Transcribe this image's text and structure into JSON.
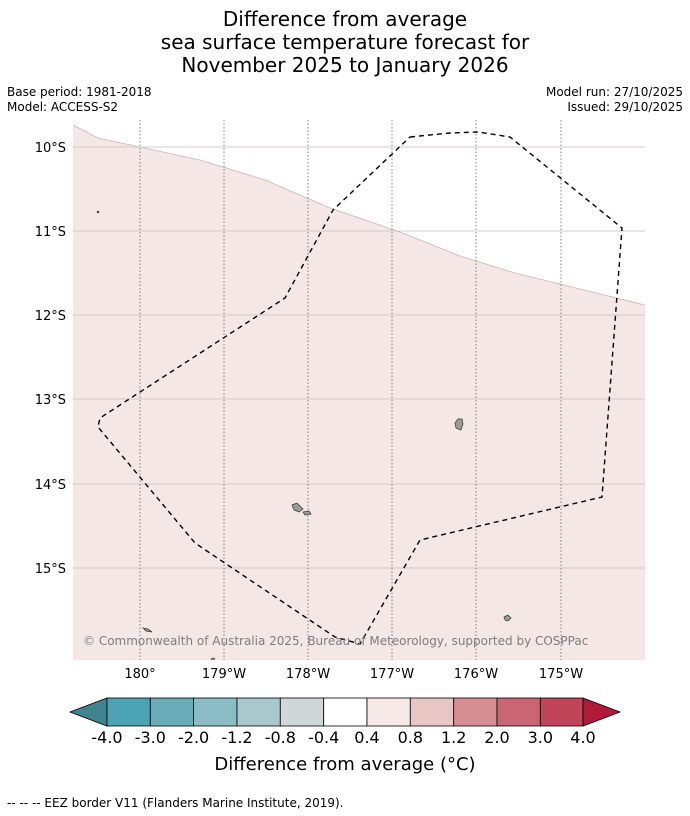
{
  "title": {
    "line1": "Difference from average",
    "line2": "sea surface temperature forecast for",
    "line3": "November 2025 to January 2026"
  },
  "meta": {
    "base_period": "Base period: 1981-2018",
    "model": "Model: ACCESS-S2",
    "model_run": "Model run: 27/10/2025",
    "issued": "Issued: 29/10/2025"
  },
  "map": {
    "lat_labels": [
      "10°S",
      "11°S",
      "12°S",
      "13°S",
      "14°S",
      "15°S"
    ],
    "lon_labels": [
      "180°",
      "179°W",
      "178°W",
      "177°W",
      "176°W",
      "175°W"
    ],
    "copyright": "© Commonwealth of Australia 2025, Bureau of Meteorology, supported by COSPPac",
    "colors": {
      "anomaly_fill": "#f4e7e6",
      "land": "#9a9a9a",
      "grid": "#c8bdbd",
      "eez_border": "#000000"
    }
  },
  "colorbar": {
    "title": "Difference from average (°C)",
    "labels": [
      "-4.0",
      "-3.0",
      "-2.0",
      "-1.2",
      "-0.8",
      "-0.4",
      "0.4",
      "0.8",
      "1.2",
      "2.0",
      "3.0",
      "4.0"
    ],
    "colors": [
      "#3f848e",
      "#4ba3b3",
      "#6aadb9",
      "#8bbcc6",
      "#a9c7cc",
      "#cfd7d9",
      "#ffffff",
      "#f5e8e7",
      "#e8c6c3",
      "#d68e93",
      "#ca6673",
      "#c04558",
      "#b01a3b"
    ]
  },
  "footnote": "--  --  -- EEZ border V11 (Flanders Marine Institute, 2019)."
}
